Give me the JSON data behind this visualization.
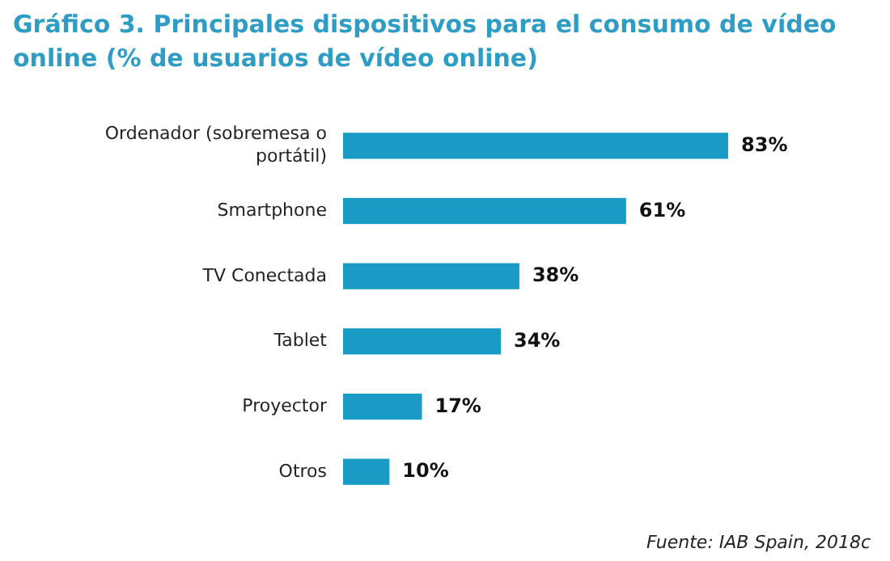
{
  "chart_data": {
    "type": "bar",
    "orientation": "horizontal",
    "title": "Gráfico 3. Principales dispositivos para el consumo de vídeo online (% de usuarios de vídeo online)",
    "categories": [
      "Ordenador (sobremesa o portátil)",
      "Smartphone",
      "TV Conectada",
      "Tablet",
      "Proyector",
      "Otros"
    ],
    "values": [
      83,
      61,
      38,
      34,
      17,
      10
    ],
    "color": "#1a9bc6",
    "value_labels": [
      "83%",
      "61%",
      "38%",
      "34%",
      "17%",
      "10%"
    ],
    "annotations": [
      "Fuente: IAB Spain, 2018c"
    ]
  }
}
